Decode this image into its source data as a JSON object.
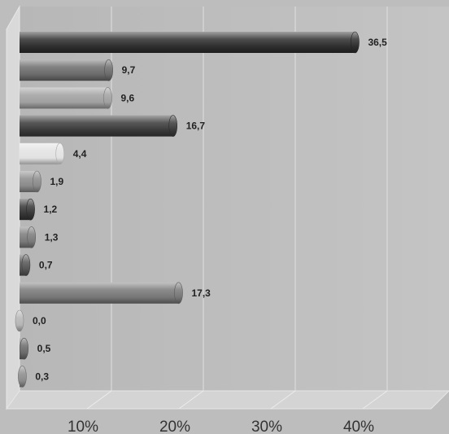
{
  "chart_data": {
    "type": "bar",
    "orientation": "horizontal",
    "title": "",
    "xlabel": "",
    "ylabel": "",
    "xlim": [
      0,
      45
    ],
    "x_ticks": [
      10,
      20,
      30,
      40
    ],
    "x_tick_labels": [
      "10%",
      "20%",
      "30%",
      "40%"
    ],
    "grid": "vertical",
    "categories": [
      "",
      "",
      "",
      "",
      "",
      "",
      "",
      "",
      "",
      "",
      "",
      "",
      ""
    ],
    "values": [
      36.5,
      9.7,
      9.6,
      16.7,
      4.4,
      1.9,
      1.2,
      1.3,
      0.7,
      17.3,
      0.0,
      0.5,
      0.3
    ],
    "value_labels": [
      "36,5",
      "9,7",
      "9,6",
      "16,7",
      "4,4",
      "1,9",
      "1,2",
      "1,3",
      "0,7",
      "17,3",
      "0,0",
      "0,5",
      "0,3"
    ],
    "bar_colors": [
      "#2e2e2e",
      "#6b6b6b",
      "#a0a0a0",
      "#3a3a3a",
      "#e2e2e2",
      "#8a8a8a",
      "#363636",
      "#7a7a7a",
      "#555555",
      "#777777",
      "#b5b5b5",
      "#6a6a6a",
      "#8c8c8c"
    ],
    "background_color": "#bdbdbd"
  }
}
